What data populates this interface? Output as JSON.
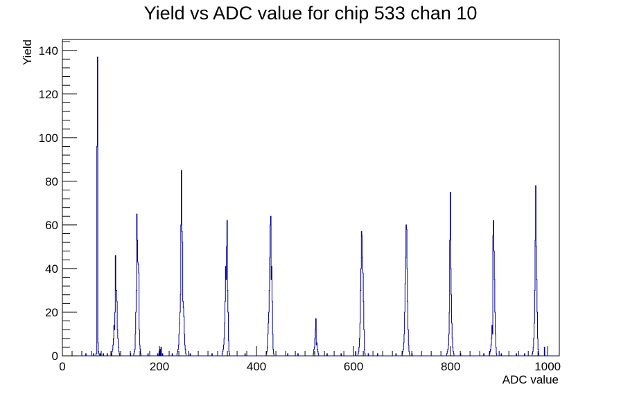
{
  "chart_data": {
    "type": "bar",
    "title": "Yield vs ADC value for chip 533 chan 10",
    "xlabel": "ADC value",
    "ylabel": "Yield",
    "xlim": [
      0,
      1024
    ],
    "ylim": [
      0,
      145
    ],
    "x_ticks": [
      "0",
      "200",
      "400",
      "600",
      "800",
      "1000"
    ],
    "y_ticks": [
      "0",
      "20",
      "40",
      "60",
      "80",
      "100",
      "120",
      "140"
    ],
    "series_color": "#000099",
    "histogram": {
      "bin_width": 1,
      "bins": [
        [
          48,
          1
        ],
        [
          64,
          1
        ],
        [
          69,
          1
        ],
        [
          70,
          1
        ],
        [
          71,
          96
        ],
        [
          72,
          137
        ],
        [
          73,
          6
        ],
        [
          74,
          2
        ],
        [
          75,
          1
        ],
        [
          78,
          1
        ],
        [
          84,
          1
        ],
        [
          92,
          1
        ],
        [
          100,
          1
        ],
        [
          102,
          2
        ],
        [
          103,
          3
        ],
        [
          104,
          5
        ],
        [
          105,
          8
        ],
        [
          106,
          14
        ],
        [
          107,
          12
        ],
        [
          108,
          20
        ],
        [
          109,
          46
        ],
        [
          110,
          30
        ],
        [
          111,
          30
        ],
        [
          112,
          25
        ],
        [
          113,
          12
        ],
        [
          114,
          8
        ],
        [
          115,
          4
        ],
        [
          116,
          2
        ],
        [
          117,
          1
        ],
        [
          140,
          1
        ],
        [
          147,
          1
        ],
        [
          148,
          2
        ],
        [
          149,
          3
        ],
        [
          150,
          10
        ],
        [
          151,
          20
        ],
        [
          152,
          30
        ],
        [
          153,
          65
        ],
        [
          154,
          53
        ],
        [
          155,
          43
        ],
        [
          156,
          42
        ],
        [
          157,
          38
        ],
        [
          158,
          12
        ],
        [
          159,
          5
        ],
        [
          160,
          3
        ],
        [
          161,
          1
        ],
        [
          176,
          1
        ],
        [
          196,
          1
        ],
        [
          199,
          2
        ],
        [
          201,
          3
        ],
        [
          203,
          4
        ],
        [
          206,
          1
        ],
        [
          226,
          1
        ],
        [
          236,
          1
        ],
        [
          237,
          2
        ],
        [
          238,
          3
        ],
        [
          239,
          5
        ],
        [
          240,
          10
        ],
        [
          241,
          15
        ],
        [
          242,
          20
        ],
        [
          243,
          28
        ],
        [
          244,
          60
        ],
        [
          245,
          85
        ],
        [
          246,
          57
        ],
        [
          247,
          52
        ],
        [
          248,
          25
        ],
        [
          249,
          22
        ],
        [
          250,
          18
        ],
        [
          251,
          10
        ],
        [
          252,
          5
        ],
        [
          253,
          3
        ],
        [
          254,
          1
        ],
        [
          263,
          1
        ],
        [
          308,
          1
        ],
        [
          329,
          1
        ],
        [
          330,
          2
        ],
        [
          331,
          3
        ],
        [
          332,
          5
        ],
        [
          333,
          8
        ],
        [
          334,
          15
        ],
        [
          335,
          25
        ],
        [
          336,
          41
        ],
        [
          337,
          35
        ],
        [
          338,
          50
        ],
        [
          339,
          62
        ],
        [
          340,
          30
        ],
        [
          341,
          20
        ],
        [
          342,
          7
        ],
        [
          343,
          2
        ],
        [
          344,
          1
        ],
        [
          376,
          1
        ],
        [
          420,
          1
        ],
        [
          421,
          2
        ],
        [
          422,
          4
        ],
        [
          423,
          10
        ],
        [
          424,
          15
        ],
        [
          425,
          20
        ],
        [
          426,
          30
        ],
        [
          427,
          45
        ],
        [
          428,
          60
        ],
        [
          429,
          64
        ],
        [
          430,
          35
        ],
        [
          431,
          41
        ],
        [
          432,
          25
        ],
        [
          433,
          10
        ],
        [
          434,
          3
        ],
        [
          435,
          1
        ],
        [
          464,
          1
        ],
        [
          485,
          1
        ],
        [
          517,
          1
        ],
        [
          518,
          3
        ],
        [
          519,
          4
        ],
        [
          520,
          8
        ],
        [
          521,
          12
        ],
        [
          522,
          17
        ],
        [
          523,
          5
        ],
        [
          524,
          6
        ],
        [
          525,
          3
        ],
        [
          526,
          2
        ],
        [
          527,
          1
        ],
        [
          545,
          1
        ],
        [
          574,
          1
        ],
        [
          604,
          2
        ],
        [
          609,
          1
        ],
        [
          610,
          2
        ],
        [
          611,
          4
        ],
        [
          612,
          8
        ],
        [
          613,
          15
        ],
        [
          614,
          30
        ],
        [
          615,
          40
        ],
        [
          616,
          57
        ],
        [
          617,
          55
        ],
        [
          618,
          45
        ],
        [
          619,
          38
        ],
        [
          620,
          25
        ],
        [
          621,
          12
        ],
        [
          622,
          3
        ],
        [
          623,
          1
        ],
        [
          630,
          1
        ],
        [
          649,
          1
        ],
        [
          687,
          1
        ],
        [
          700,
          1
        ],
        [
          701,
          2
        ],
        [
          702,
          3
        ],
        [
          703,
          6
        ],
        [
          704,
          10
        ],
        [
          705,
          20
        ],
        [
          706,
          33
        ],
        [
          707,
          45
        ],
        [
          708,
          60
        ],
        [
          709,
          58
        ],
        [
          710,
          40
        ],
        [
          711,
          25
        ],
        [
          712,
          12
        ],
        [
          713,
          5
        ],
        [
          714,
          2
        ],
        [
          715,
          1
        ],
        [
          720,
          1
        ],
        [
          792,
          1
        ],
        [
          793,
          2
        ],
        [
          794,
          3
        ],
        [
          795,
          5
        ],
        [
          796,
          10
        ],
        [
          797,
          20
        ],
        [
          798,
          53
        ],
        [
          799,
          75
        ],
        [
          800,
          40
        ],
        [
          801,
          28
        ],
        [
          802,
          15
        ],
        [
          803,
          8
        ],
        [
          804,
          4
        ],
        [
          805,
          2
        ],
        [
          806,
          1
        ],
        [
          820,
          1
        ],
        [
          868,
          1
        ],
        [
          880,
          1
        ],
        [
          881,
          2
        ],
        [
          882,
          3
        ],
        [
          883,
          5
        ],
        [
          884,
          8
        ],
        [
          885,
          14
        ],
        [
          886,
          10
        ],
        [
          887,
          55
        ],
        [
          888,
          62
        ],
        [
          889,
          48
        ],
        [
          890,
          35
        ],
        [
          891,
          20
        ],
        [
          892,
          10
        ],
        [
          893,
          4
        ],
        [
          894,
          1
        ],
        [
          904,
          1
        ],
        [
          935,
          1
        ],
        [
          952,
          1
        ],
        [
          968,
          1
        ],
        [
          969,
          2
        ],
        [
          970,
          4
        ],
        [
          971,
          8
        ],
        [
          972,
          15
        ],
        [
          973,
          30
        ],
        [
          974,
          53
        ],
        [
          975,
          78
        ],
        [
          976,
          50
        ],
        [
          977,
          35
        ],
        [
          978,
          20
        ],
        [
          979,
          8
        ],
        [
          980,
          3
        ],
        [
          981,
          1
        ],
        [
          993,
          4
        ]
      ]
    }
  }
}
